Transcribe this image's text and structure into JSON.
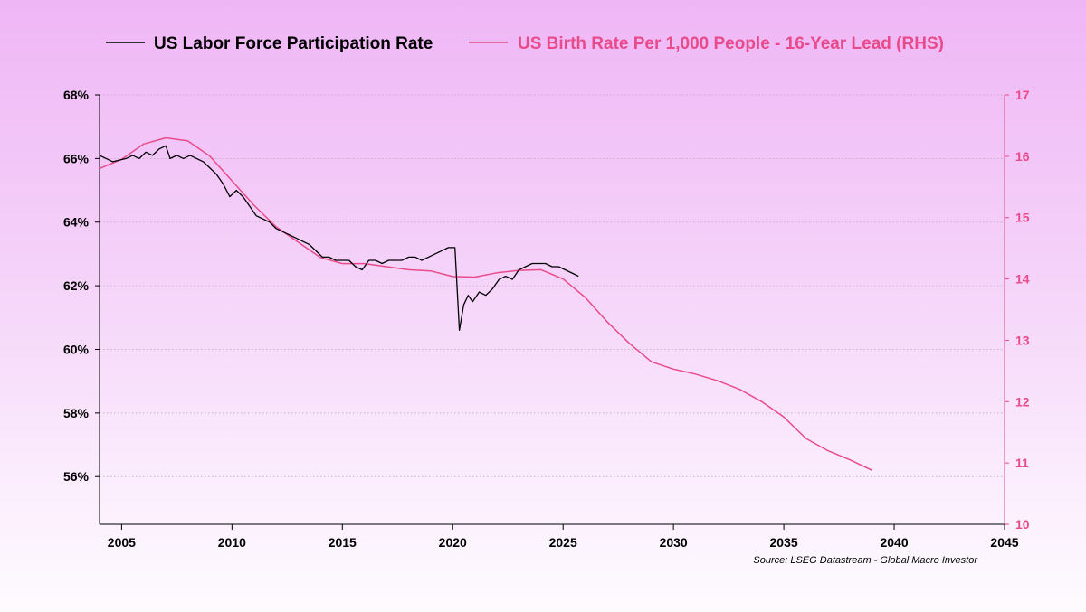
{
  "chart_data": {
    "type": "line",
    "legend": [
      {
        "label": "US Labor Force Participation Rate",
        "color": "#000000"
      },
      {
        "label": "US Birth Rate Per 1,000 People - 16-Year Lead (RHS)",
        "color": "#e84b8a"
      }
    ],
    "source": "Source: LSEG Datastream - Global Macro Investor",
    "x_axis": {
      "min": 2004,
      "max": 2045,
      "ticks": [
        2005,
        2010,
        2015,
        2020,
        2025,
        2030,
        2035,
        2040,
        2045
      ]
    },
    "y_left": {
      "min": 54.5,
      "max": 68,
      "ticks": [
        56,
        58,
        60,
        62,
        64,
        66,
        68
      ],
      "suffix": "%"
    },
    "y_right": {
      "min": 10,
      "max": 17,
      "ticks": [
        10,
        11,
        12,
        13,
        14,
        15,
        16,
        17
      ]
    },
    "series": [
      {
        "name": "US Labor Force Participation Rate",
        "axis": "left",
        "color": "#000000",
        "x": [
          2004.0,
          2004.3,
          2004.6,
          2004.9,
          2005.2,
          2005.5,
          2005.8,
          2006.1,
          2006.4,
          2006.7,
          2007.0,
          2007.2,
          2007.5,
          2007.8,
          2008.1,
          2008.4,
          2008.7,
          2009.0,
          2009.3,
          2009.6,
          2009.9,
          2010.2,
          2010.5,
          2010.8,
          2011.1,
          2011.4,
          2011.7,
          2012.0,
          2012.3,
          2012.6,
          2012.9,
          2013.2,
          2013.5,
          2013.8,
          2014.1,
          2014.4,
          2014.7,
          2015.0,
          2015.3,
          2015.6,
          2015.9,
          2016.2,
          2016.5,
          2016.8,
          2017.1,
          2017.4,
          2017.7,
          2018.0,
          2018.3,
          2018.6,
          2018.9,
          2019.2,
          2019.5,
          2019.8,
          2020.1,
          2020.3,
          2020.5,
          2020.7,
          2020.9,
          2021.2,
          2021.5,
          2021.8,
          2022.1,
          2022.4,
          2022.7,
          2023.0,
          2023.3,
          2023.6,
          2023.9,
          2024.2,
          2024.5,
          2024.8,
          2025.1,
          2025.4,
          2025.7
        ],
        "values": [
          66.1,
          66.0,
          65.9,
          65.95,
          66.0,
          66.1,
          66.0,
          66.2,
          66.1,
          66.3,
          66.4,
          66.0,
          66.1,
          66.0,
          66.1,
          66.0,
          65.9,
          65.7,
          65.5,
          65.2,
          64.8,
          65.0,
          64.8,
          64.5,
          64.2,
          64.1,
          64.0,
          63.8,
          63.7,
          63.6,
          63.5,
          63.4,
          63.3,
          63.1,
          62.9,
          62.9,
          62.8,
          62.8,
          62.8,
          62.6,
          62.5,
          62.8,
          62.8,
          62.7,
          62.8,
          62.8,
          62.8,
          62.9,
          62.9,
          62.8,
          62.9,
          63.0,
          63.1,
          63.2,
          63.2,
          60.6,
          61.4,
          61.7,
          61.5,
          61.8,
          61.7,
          61.9,
          62.2,
          62.3,
          62.2,
          62.5,
          62.6,
          62.7,
          62.7,
          62.7,
          62.6,
          62.6,
          62.5,
          62.4,
          62.3
        ]
      },
      {
        "name": "US Birth Rate Per 1,000 People - 16-Year Lead (RHS)",
        "axis": "right",
        "color": "#e84b8a",
        "x": [
          2004.0,
          2005.0,
          2006.0,
          2007.0,
          2008.0,
          2009.0,
          2010.0,
          2011.0,
          2012.0,
          2013.0,
          2014.0,
          2015.0,
          2016.0,
          2017.0,
          2018.0,
          2019.0,
          2020.0,
          2021.0,
          2022.0,
          2023.0,
          2024.0,
          2025.0,
          2026.0,
          2027.0,
          2028.0,
          2029.0,
          2030.0,
          2031.0,
          2032.0,
          2033.0,
          2034.0,
          2035.0,
          2036.0,
          2037.0,
          2038.0,
          2039.0
        ],
        "values": [
          15.8,
          15.95,
          16.2,
          16.3,
          16.25,
          16.0,
          15.6,
          15.2,
          14.85,
          14.6,
          14.35,
          14.25,
          14.25,
          14.2,
          14.15,
          14.13,
          14.04,
          14.03,
          14.1,
          14.14,
          14.15,
          14.0,
          13.7,
          13.3,
          12.95,
          12.65,
          12.53,
          12.45,
          12.34,
          12.2,
          12.0,
          11.75,
          11.4,
          11.2,
          11.05,
          10.88
        ]
      }
    ]
  }
}
